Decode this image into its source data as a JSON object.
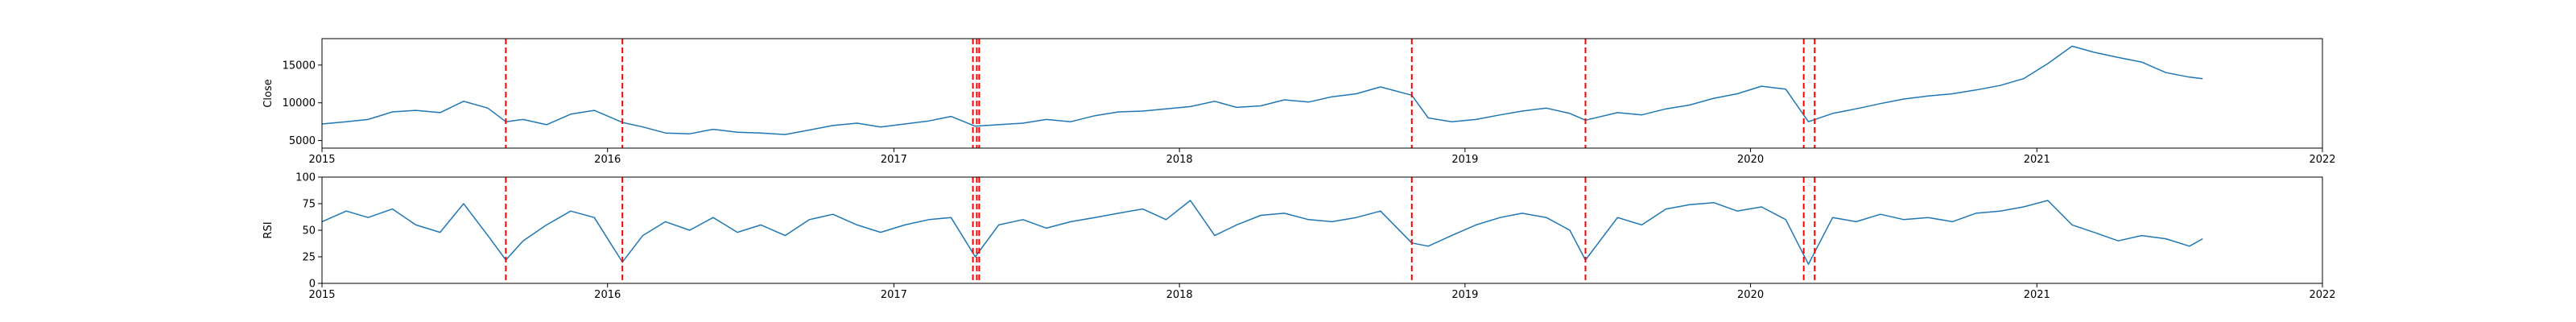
{
  "colors": {
    "line": "#1f77b4",
    "events": "#ff0000",
    "axes": "#000000",
    "background": "#ffffff"
  },
  "event_dates": [
    "2015-08-24",
    "2016-01-20",
    "2017-04-12",
    "2017-04-17",
    "2017-04-20",
    "2018-10-25",
    "2019-06-04",
    "2020-03-09",
    "2020-03-23"
  ],
  "chart_data": [
    {
      "type": "line",
      "ylabel": "Close",
      "xlabel": "",
      "xlim": [
        "2015-01-01",
        "2022-01-01"
      ],
      "x_ticks": [
        "2015",
        "2016",
        "2017",
        "2018",
        "2019",
        "2020",
        "2021",
        "2022"
      ],
      "ylim": [
        4000,
        18500
      ],
      "y_ticks": [
        5000,
        10000,
        15000
      ],
      "grid": false,
      "series": [
        {
          "x": [
            "2015-01-01",
            "2015-02-01",
            "2015-03-01",
            "2015-04-01",
            "2015-05-01",
            "2015-06-01",
            "2015-07-01",
            "2015-08-01",
            "2015-08-24",
            "2015-09-15",
            "2015-10-15",
            "2015-11-15",
            "2015-12-15",
            "2016-01-20",
            "2016-02-15",
            "2016-03-15",
            "2016-04-15",
            "2016-05-15",
            "2016-06-15",
            "2016-07-15",
            "2016-08-15",
            "2016-09-15",
            "2016-10-15",
            "2016-11-15",
            "2016-12-15",
            "2017-01-15",
            "2017-02-15",
            "2017-03-15",
            "2017-04-15",
            "2017-05-15",
            "2017-06-15",
            "2017-07-15",
            "2017-08-15",
            "2017-09-15",
            "2017-10-15",
            "2017-11-15",
            "2017-12-15",
            "2018-01-15",
            "2018-02-15",
            "2018-03-15",
            "2018-04-15",
            "2018-05-15",
            "2018-06-15",
            "2018-07-15",
            "2018-08-15",
            "2018-09-15",
            "2018-10-25",
            "2018-11-15",
            "2018-12-15",
            "2019-01-15",
            "2019-02-15",
            "2019-03-15",
            "2019-04-15",
            "2019-05-15",
            "2019-06-04",
            "2019-07-15",
            "2019-08-15",
            "2019-09-15",
            "2019-10-15",
            "2019-11-15",
            "2019-12-15",
            "2020-01-15",
            "2020-02-15",
            "2020-03-15",
            "2020-04-15",
            "2020-05-15",
            "2020-06-15",
            "2020-07-15",
            "2020-08-15",
            "2020-09-15",
            "2020-10-15",
            "2020-11-15",
            "2020-12-15",
            "2021-01-15",
            "2021-02-15",
            "2021-03-15",
            "2021-04-15",
            "2021-05-15",
            "2021-06-15",
            "2021-07-15",
            "2021-08-01"
          ],
          "values": [
            7200,
            7500,
            7800,
            8800,
            9000,
            8700,
            10200,
            9300,
            7500,
            7800,
            7100,
            8500,
            9000,
            7400,
            6800,
            6000,
            5900,
            6500,
            6100,
            6000,
            5800,
            6400,
            7000,
            7300,
            6800,
            7200,
            7600,
            8200,
            6900,
            7100,
            7300,
            7800,
            7500,
            8300,
            8800,
            8900,
            9200,
            9500,
            10200,
            9400,
            9600,
            10400,
            10100,
            10800,
            11200,
            12100,
            11000,
            8000,
            7500,
            7800,
            8400,
            8900,
            9300,
            8600,
            7700,
            8700,
            8400,
            9200,
            9700,
            10600,
            11200,
            12200,
            11800,
            7500,
            8600,
            9200,
            9900,
            10500,
            10900,
            11200,
            11700,
            12300,
            13200,
            15200,
            17500,
            16700,
            16000,
            15400,
            14000,
            13400,
            13200
          ]
        }
      ]
    },
    {
      "type": "line",
      "ylabel": "RSI",
      "xlabel": "",
      "xlim": [
        "2015-01-01",
        "2022-01-01"
      ],
      "x_ticks": [
        "2015",
        "2016",
        "2017",
        "2018",
        "2019",
        "2020",
        "2021",
        "2022"
      ],
      "ylim": [
        0,
        100
      ],
      "y_ticks": [
        0,
        25,
        50,
        75,
        100
      ],
      "grid": false,
      "series": [
        {
          "x": [
            "2015-01-01",
            "2015-02-01",
            "2015-03-01",
            "2015-04-01",
            "2015-05-01",
            "2015-06-01",
            "2015-07-01",
            "2015-08-01",
            "2015-08-24",
            "2015-09-15",
            "2015-10-15",
            "2015-11-15",
            "2015-12-15",
            "2016-01-20",
            "2016-02-15",
            "2016-03-15",
            "2016-04-15",
            "2016-05-15",
            "2016-06-15",
            "2016-07-15",
            "2016-08-15",
            "2016-09-15",
            "2016-10-15",
            "2016-11-15",
            "2016-12-15",
            "2017-01-15",
            "2017-02-15",
            "2017-03-15",
            "2017-04-15",
            "2017-05-15",
            "2017-06-15",
            "2017-07-15",
            "2017-08-15",
            "2017-09-15",
            "2017-10-15",
            "2017-11-15",
            "2017-12-15",
            "2018-01-15",
            "2018-02-15",
            "2018-03-15",
            "2018-04-15",
            "2018-05-15",
            "2018-06-15",
            "2018-07-15",
            "2018-08-15",
            "2018-09-15",
            "2018-10-25",
            "2018-11-15",
            "2018-12-15",
            "2019-01-15",
            "2019-02-15",
            "2019-03-15",
            "2019-04-15",
            "2019-05-15",
            "2019-06-04",
            "2019-07-15",
            "2019-08-15",
            "2019-09-15",
            "2019-10-15",
            "2019-11-15",
            "2019-12-15",
            "2020-01-15",
            "2020-02-15",
            "2020-03-15",
            "2020-04-15",
            "2020-05-15",
            "2020-06-15",
            "2020-07-15",
            "2020-08-15",
            "2020-09-15",
            "2020-10-15",
            "2020-11-15",
            "2020-12-15",
            "2021-01-15",
            "2021-02-15",
            "2021-03-15",
            "2021-04-15",
            "2021-05-15",
            "2021-06-15",
            "2021-07-15",
            "2021-08-01"
          ],
          "values": [
            58,
            68,
            62,
            70,
            55,
            48,
            75,
            45,
            22,
            40,
            55,
            68,
            62,
            20,
            45,
            58,
            50,
            62,
            48,
            55,
            45,
            60,
            65,
            55,
            48,
            55,
            60,
            62,
            25,
            55,
            60,
            52,
            58,
            62,
            66,
            70,
            60,
            78,
            45,
            55,
            64,
            66,
            60,
            58,
            62,
            68,
            38,
            35,
            45,
            55,
            62,
            66,
            62,
            50,
            22,
            62,
            55,
            70,
            74,
            76,
            68,
            72,
            60,
            18,
            62,
            58,
            65,
            60,
            62,
            58,
            66,
            68,
            72,
            78,
            55,
            48,
            40,
            45,
            42,
            35,
            42
          ]
        }
      ]
    }
  ]
}
